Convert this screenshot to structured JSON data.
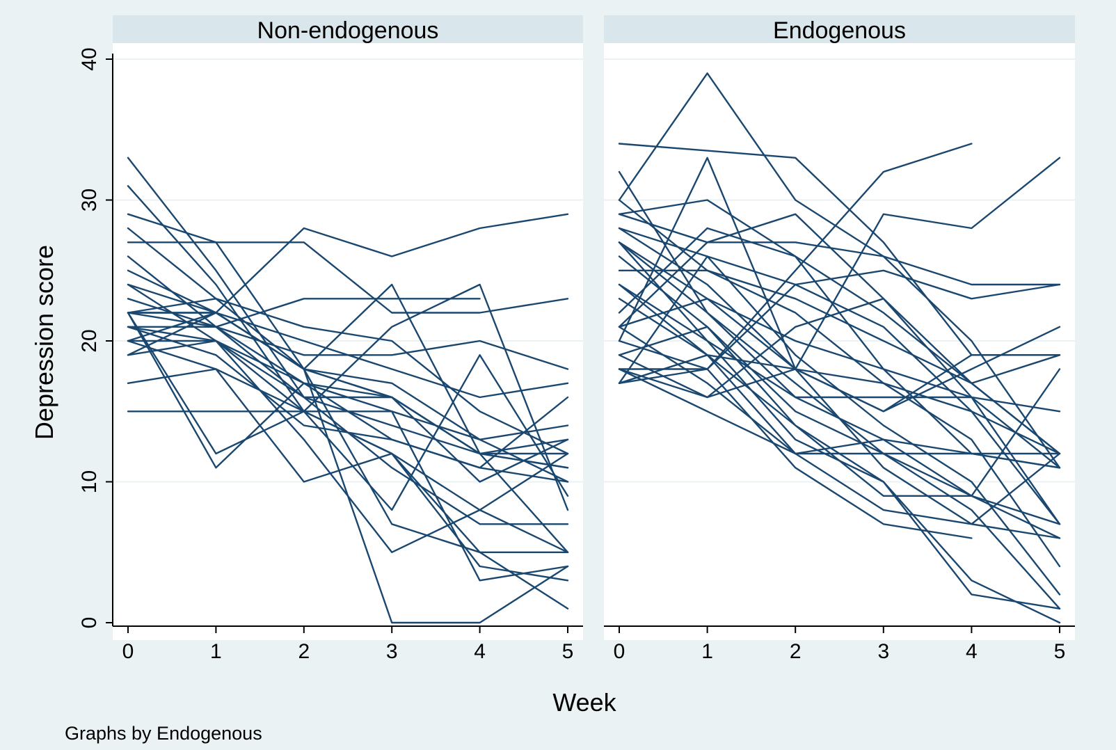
{
  "chart_data": {
    "type": "line",
    "xlabel": "Week",
    "ylabel": "Depression score",
    "note": "Graphs by Endogenous",
    "x": [
      0,
      1,
      2,
      3,
      4,
      5
    ],
    "xlim": [
      0,
      5
    ],
    "ylim": [
      0,
      40
    ],
    "xticks": [
      "0",
      "1",
      "2",
      "3",
      "4",
      "5"
    ],
    "yticks": [
      "0",
      "10",
      "20",
      "30",
      "40"
    ],
    "grid": true,
    "line_color": "#1a476f",
    "panels": [
      {
        "title": "Non-endogenous",
        "series": [
          {
            "values": [
              33,
              25,
              16,
              14,
              12,
              12
            ]
          },
          {
            "values": [
              31,
              24,
              15,
              12,
              8,
              5
            ]
          },
          {
            "values": [
              29,
              27,
              18,
              16,
              12,
              11
            ]
          },
          {
            "values": [
              28,
              23,
              18,
              16,
              12,
              13
            ]
          },
          {
            "values": [
              27,
              27,
              27,
              22,
              22,
              23
            ]
          },
          {
            "values": [
              26,
              21,
              17,
              13,
              11,
              10
            ]
          },
          {
            "values": [
              25,
              22,
              20,
              18,
              16,
              17
            ]
          },
          {
            "values": [
              24,
              22,
              18,
              17,
              13,
              10
            ]
          },
          {
            "values": [
              24,
              20,
              15,
              12,
              5,
              5
            ]
          },
          {
            "values": [
              23,
              21,
              16,
              16,
              10,
              13
            ]
          },
          {
            "values": [
              22,
              23,
              21,
              20,
              15,
              12
            ]
          },
          {
            "values": [
              22,
              22,
              28,
              26,
              28,
              29
            ]
          },
          {
            "values": [
              22,
              21,
              19,
              19,
              20,
              18
            ]
          },
          {
            "values": [
              22,
              22,
              18,
              24,
              12,
              5
            ]
          },
          {
            "values": [
              22,
              12,
              15,
              8,
              19,
              9
            ]
          },
          {
            "values": [
              21,
              21,
              23,
              23,
              23,
              null
            ]
          },
          {
            "values": [
              21,
              20,
              17,
              16,
              12,
              11
            ]
          },
          {
            "values": [
              21,
              19,
              14,
              13,
              11,
              16
            ]
          },
          {
            "values": [
              20,
              22,
              18,
              0,
              0,
              4
            ]
          },
          {
            "values": [
              20,
              20,
              16,
              11,
              7,
              7
            ]
          },
          {
            "values": [
              20,
              18,
              15,
              15,
              13,
              14
            ]
          },
          {
            "values": [
              19,
              20,
              13,
              5,
              8,
              12
            ]
          },
          {
            "values": [
              19,
              22,
              18,
              7,
              5,
              1
            ]
          },
          {
            "values": [
              17,
              18,
              10,
              12,
              4,
              3
            ]
          },
          {
            "values": [
              15,
              15,
              15,
              21,
              24,
              8
            ]
          },
          {
            "values": [
              22,
              11,
              17,
              15,
              3,
              4
            ]
          }
        ]
      },
      {
        "title": "Endogenous",
        "series": [
          {
            "values": [
              34,
              33.5,
              33,
              27,
              19,
              19
            ]
          },
          {
            "values": [
              32,
              22,
              16,
              13,
              12,
              11
            ]
          },
          {
            "values": [
              30,
              39,
              30,
              26,
              20,
              11
            ]
          },
          {
            "values": [
              30,
              25,
              22,
              17,
              15,
              12
            ]
          },
          {
            "values": [
              29,
              30,
              26,
              22,
              17,
              12
            ]
          },
          {
            "values": [
              29,
              27,
              27,
              26,
              24,
              24
            ]
          },
          {
            "values": [
              28,
              24,
              18,
              11,
              7,
              6
            ]
          },
          {
            "values": [
              28,
              26,
              24,
              21,
              15,
              7
            ]
          },
          {
            "values": [
              27,
              23,
              20,
              18,
              16,
              11
            ]
          },
          {
            "values": [
              27,
              20,
              16,
              16,
              16,
              15
            ]
          },
          {
            "values": [
              27,
              22,
              17,
              12,
              9,
              7
            ]
          },
          {
            "values": [
              26,
              21,
              15,
              12,
              8,
              1
            ]
          },
          {
            "values": [
              25,
              25,
              23,
              20,
              17,
              12
            ]
          },
          {
            "values": [
              24,
              19,
              12,
              8,
              7,
              12
            ]
          },
          {
            "values": [
              24,
              20,
              13,
              10,
              2,
              1
            ]
          },
          {
            "values": [
              22,
              28,
              26,
              18,
              12,
              11
            ]
          },
          {
            "values": [
              21,
              27,
              29,
              23,
              17,
              19
            ]
          },
          {
            "values": [
              21,
              23,
              18,
              15,
              18,
              21
            ]
          },
          {
            "values": [
              21,
              17,
              12,
              13,
              9,
              6
            ]
          },
          {
            "values": [
              20,
              33,
              18,
              15,
              19,
              19
            ]
          },
          {
            "values": [
              20,
              18,
              11,
              7,
              6,
              null
            ]
          },
          {
            "values": [
              19,
              16,
              18,
              29,
              28,
              33
            ]
          },
          {
            "values": [
              19,
              21,
              14,
              9,
              9,
              18
            ]
          },
          {
            "values": [
              18,
              18,
              25,
              32,
              34,
              null
            ]
          },
          {
            "values": [
              18,
              15,
              12,
              12,
              12,
              12
            ]
          },
          {
            "values": [
              18,
              16,
              21,
              23,
              16,
              7
            ]
          },
          {
            "values": [
              17,
              18,
              24,
              25,
              23,
              24
            ]
          },
          {
            "values": [
              17,
              19,
              14,
              10,
              3,
              0
            ]
          },
          {
            "values": [
              17,
              26,
              19,
              14,
              10,
              2
            ]
          },
          {
            "values": [
              23,
              19,
              18,
              17,
              13,
              4
            ]
          }
        ]
      }
    ]
  }
}
